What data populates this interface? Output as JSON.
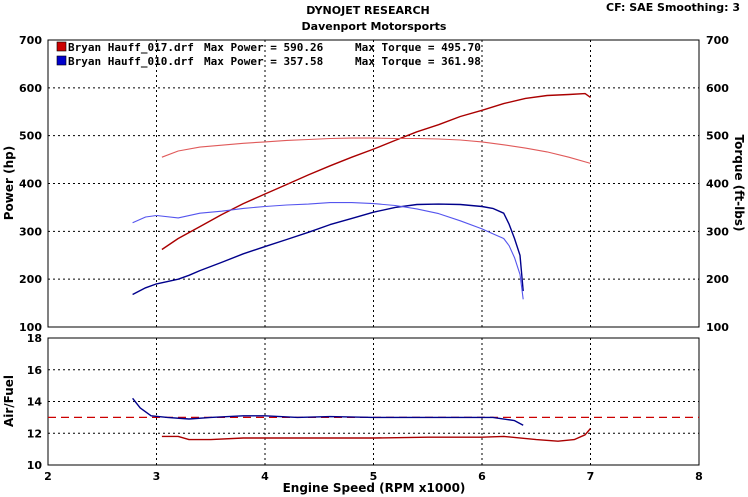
{
  "header": {
    "title": "DYNOJET RESEARCH",
    "subtitle": "Davenport Motorsports",
    "settings": "CF: SAE  Smoothing: 3"
  },
  "legend": [
    {
      "file": "Bryan Hauff_017.drf",
      "power_label": "Max Power = 590.26",
      "torque_label": "Max Torque = 495.70",
      "color": "#cc0000"
    },
    {
      "file": "Bryan Hauff_010.drf",
      "power_label": "Max Power = 357.58",
      "torque_label": "Max Torque = 361.98",
      "color": "#0000cc"
    }
  ],
  "chart_data": [
    {
      "type": "line",
      "title": "",
      "xlabel": "Engine Speed (RPM x1000)",
      "ylabel": "Power (hp)",
      "y2label": "Torque (ft-lbs)",
      "xlim": [
        2,
        8
      ],
      "ylim": [
        100,
        700
      ],
      "y2lim": [
        100,
        700
      ],
      "xticks": [
        "2",
        "3",
        "4",
        "5",
        "6",
        "7",
        "8"
      ],
      "yticks": [
        "100",
        "200",
        "300",
        "400",
        "500",
        "600",
        "700"
      ],
      "y2ticks": [
        "100",
        "200",
        "300",
        "400",
        "500",
        "600",
        "700"
      ],
      "grid": true,
      "colors": {
        "red_power": "#aa0000",
        "red_torque": "#e05a5a",
        "blue_power": "#00008b",
        "blue_torque": "#5555ee"
      },
      "series": [
        {
          "name": "Bryan Hauff_017.drf Power",
          "axis": "left",
          "style": "power",
          "color": "#aa0000",
          "x": [
            3.05,
            3.2,
            3.4,
            3.6,
            3.8,
            4.0,
            4.2,
            4.4,
            4.6,
            4.8,
            5.0,
            5.2,
            5.4,
            5.6,
            5.8,
            6.0,
            6.2,
            6.4,
            6.6,
            6.8,
            6.95,
            7.0
          ],
          "y": [
            262,
            285,
            310,
            335,
            358,
            378,
            398,
            418,
            437,
            455,
            472,
            490,
            508,
            523,
            540,
            553,
            567,
            578,
            584,
            586,
            588,
            580
          ]
        },
        {
          "name": "Bryan Hauff_017.drf Torque",
          "axis": "right",
          "style": "torque",
          "color": "#e05a5a",
          "x": [
            3.05,
            3.2,
            3.4,
            3.6,
            3.8,
            4.0,
            4.2,
            4.4,
            4.6,
            4.8,
            5.0,
            5.2,
            5.4,
            5.6,
            5.8,
            6.0,
            6.2,
            6.4,
            6.6,
            6.8,
            7.0
          ],
          "y": [
            455,
            468,
            476,
            480,
            484,
            487,
            490,
            492,
            494,
            495,
            495,
            494,
            494,
            493,
            491,
            487,
            481,
            474,
            466,
            455,
            442
          ]
        },
        {
          "name": "Bryan Hauff_010.drf Power",
          "axis": "left",
          "style": "power",
          "color": "#00008b",
          "x": [
            2.78,
            2.9,
            3.0,
            3.1,
            3.2,
            3.3,
            3.4,
            3.6,
            3.8,
            4.0,
            4.2,
            4.4,
            4.6,
            4.8,
            5.0,
            5.2,
            5.4,
            5.6,
            5.8,
            6.0,
            6.1,
            6.2,
            6.25,
            6.3,
            6.35,
            6.38
          ],
          "y": [
            168,
            182,
            190,
            195,
            200,
            208,
            218,
            235,
            253,
            268,
            283,
            298,
            314,
            327,
            340,
            350,
            356,
            357,
            356,
            352,
            348,
            338,
            315,
            285,
            250,
            175
          ]
        },
        {
          "name": "Bryan Hauff_010.drf Torque",
          "axis": "right",
          "style": "torque",
          "color": "#5555ee",
          "x": [
            2.78,
            2.9,
            3.0,
            3.2,
            3.4,
            3.6,
            3.8,
            4.0,
            4.2,
            4.4,
            4.6,
            4.8,
            5.0,
            5.2,
            5.4,
            5.6,
            5.8,
            6.0,
            6.1,
            6.2,
            6.25,
            6.3,
            6.35,
            6.38
          ],
          "y": [
            318,
            330,
            333,
            328,
            338,
            342,
            348,
            352,
            355,
            357,
            360,
            360,
            358,
            354,
            347,
            337,
            322,
            305,
            295,
            285,
            270,
            245,
            210,
            158
          ]
        }
      ]
    },
    {
      "type": "line",
      "title": "",
      "xlabel": "Engine Speed (RPM x1000)",
      "ylabel": "Air/Fuel",
      "xlim": [
        2,
        8
      ],
      "ylim": [
        10,
        18
      ],
      "xticks": [
        "2",
        "3",
        "4",
        "5",
        "6",
        "7",
        "8"
      ],
      "yticks": [
        "10",
        "12",
        "14",
        "16",
        "18"
      ],
      "grid": true,
      "reference_line": {
        "y": 13.0,
        "color": "#cc0000",
        "style": "dashed"
      },
      "series": [
        {
          "name": "Bryan Hauff_017.drf Air/Fuel",
          "color": "#aa0000",
          "x": [
            3.05,
            3.2,
            3.3,
            3.5,
            3.8,
            4.0,
            4.5,
            5.0,
            5.5,
            6.0,
            6.2,
            6.5,
            6.7,
            6.85,
            6.95,
            7.0
          ],
          "y": [
            11.8,
            11.8,
            11.6,
            11.6,
            11.7,
            11.7,
            11.7,
            11.7,
            11.75,
            11.75,
            11.8,
            11.6,
            11.5,
            11.6,
            11.9,
            12.3
          ]
        },
        {
          "name": "Bryan Hauff_010.drf Air/Fuel",
          "color": "#00008b",
          "x": [
            2.78,
            2.85,
            2.95,
            3.1,
            3.3,
            3.5,
            3.8,
            4.0,
            4.3,
            4.6,
            5.0,
            5.4,
            5.8,
            6.1,
            6.3,
            6.38
          ],
          "y": [
            14.2,
            13.6,
            13.1,
            13.0,
            12.9,
            13.0,
            13.1,
            13.1,
            13.0,
            13.05,
            13.0,
            13.0,
            13.0,
            13.0,
            12.8,
            12.5
          ]
        }
      ]
    }
  ]
}
